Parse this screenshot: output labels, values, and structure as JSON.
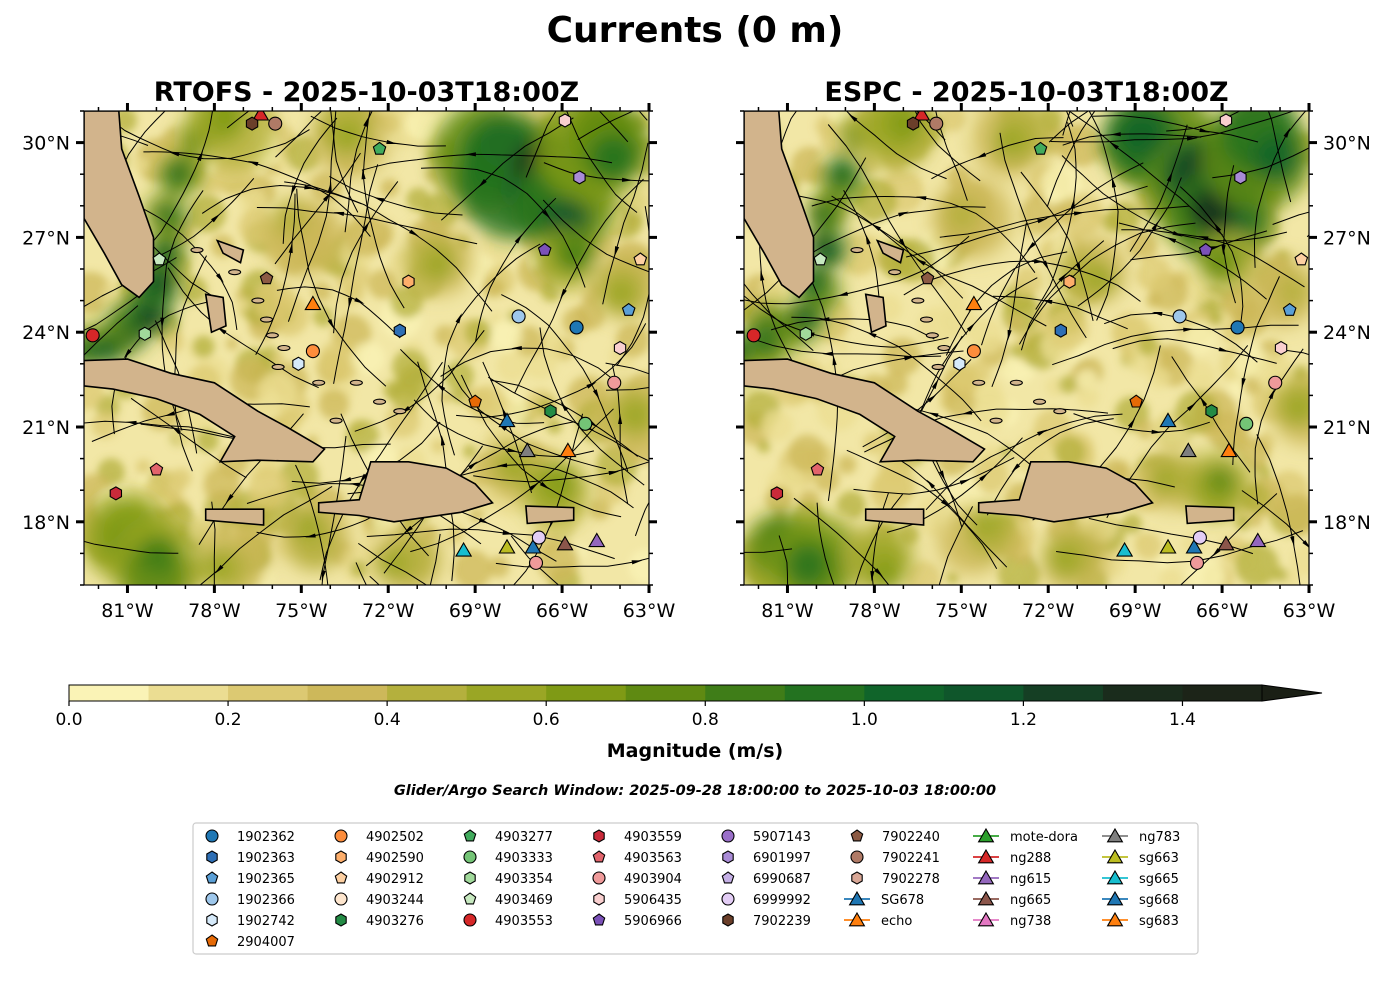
{
  "chart_data": {
    "type": "heatmap",
    "title": "Currents (0 m)",
    "panels": [
      {
        "title": "RTOFS - 2025-10-03T18:00Z",
        "variable": "surface current magnitude with streamlines"
      },
      {
        "title": "ESPC - 2025-10-03T18:00Z",
        "variable": "surface current magnitude with streamlines"
      }
    ],
    "xlim": [
      -82.5,
      -63.0
    ],
    "ylim": [
      16.0,
      31.0
    ],
    "x_ticks": [
      "81°W",
      "78°W",
      "75°W",
      "72°W",
      "69°W",
      "66°W",
      "63°W"
    ],
    "y_ticks": [
      "18°N",
      "21°N",
      "24°N",
      "27°N",
      "30°N"
    ],
    "colorbar": {
      "label": "Magnitude (m/s)",
      "range": [
        0.0,
        1.5
      ],
      "extend": "max",
      "ticks": [
        "0.0",
        "0.2",
        "0.4",
        "0.6",
        "0.8",
        "1.0",
        "1.2",
        "1.4"
      ],
      "colors": [
        "#faf3b6",
        "#ebdd92",
        "#dcc972",
        "#cdb85a",
        "#b4b03d",
        "#9aa625",
        "#7f9a15",
        "#5f8a12",
        "#3f7d18",
        "#237220",
        "#10642a",
        "#0f562b",
        "#153f24",
        "#1a2c1c",
        "#1c2418"
      ]
    },
    "subtitle": "Glider/Argo Search Window: 2025-09-28 18:00:00 to 2025-10-03 18:00:00",
    "legend": [
      {
        "name": "1902362",
        "marker": "circle",
        "color": "#1f77b4"
      },
      {
        "name": "1902363",
        "marker": "hexagon",
        "color": "#2e6fb5"
      },
      {
        "name": "1902365",
        "marker": "pentagon",
        "color": "#5a9fd6"
      },
      {
        "name": "1902366",
        "marker": "circle",
        "color": "#9ec7eb"
      },
      {
        "name": "1902742",
        "marker": "hexagon",
        "color": "#d6eafa"
      },
      {
        "name": "2904007",
        "marker": "pentagon",
        "color": "#e66a06"
      },
      {
        "name": "4902502",
        "marker": "circle",
        "color": "#fd8d3c"
      },
      {
        "name": "4902590",
        "marker": "hexagon",
        "color": "#fdae6b"
      },
      {
        "name": "4902912",
        "marker": "pentagon",
        "color": "#fdd0a2"
      },
      {
        "name": "4903244",
        "marker": "circle",
        "color": "#fee6ce"
      },
      {
        "name": "4903276",
        "marker": "hexagon",
        "color": "#238b45"
      },
      {
        "name": "4903277",
        "marker": "pentagon",
        "color": "#41ab5d"
      },
      {
        "name": "4903333",
        "marker": "circle",
        "color": "#74c476"
      },
      {
        "name": "4903354",
        "marker": "hexagon",
        "color": "#a1d99b"
      },
      {
        "name": "4903469",
        "marker": "pentagon",
        "color": "#c7e9c0"
      },
      {
        "name": "4903553",
        "marker": "circle",
        "color": "#d62728"
      },
      {
        "name": "4903559",
        "marker": "hexagon",
        "color": "#c92a3a"
      },
      {
        "name": "4903563",
        "marker": "pentagon",
        "color": "#e2646c"
      },
      {
        "name": "4903904",
        "marker": "circle",
        "color": "#ef9a9a"
      },
      {
        "name": "5906435",
        "marker": "hexagon",
        "color": "#f9cfcf"
      },
      {
        "name": "5906966",
        "marker": "pentagon",
        "color": "#7b51b8"
      },
      {
        "name": "5907143",
        "marker": "circle",
        "color": "#9a6fc9"
      },
      {
        "name": "6901997",
        "marker": "hexagon",
        "color": "#a98bd6"
      },
      {
        "name": "6990687",
        "marker": "pentagon",
        "color": "#c5b0e6"
      },
      {
        "name": "6999992",
        "marker": "circle",
        "color": "#e3cdf5"
      },
      {
        "name": "7902239",
        "marker": "hexagon",
        "color": "#6b3f2a"
      },
      {
        "name": "7902240",
        "marker": "pentagon",
        "color": "#8c5a44"
      },
      {
        "name": "7902241",
        "marker": "circle",
        "color": "#b07a66"
      },
      {
        "name": "7902278",
        "marker": "hexagon",
        "color": "#d9a796"
      },
      {
        "name": "SG678",
        "marker": "triangle",
        "color": "#1f77b4"
      },
      {
        "name": "echo",
        "marker": "triangle",
        "color": "#ff7f0e"
      },
      {
        "name": "mote-dora",
        "marker": "triangle",
        "color": "#2ca02c"
      },
      {
        "name": "ng288",
        "marker": "triangle",
        "color": "#d62728"
      },
      {
        "name": "ng615",
        "marker": "triangle",
        "color": "#9467bd"
      },
      {
        "name": "ng665",
        "marker": "triangle",
        "color": "#8c564b"
      },
      {
        "name": "ng738",
        "marker": "triangle",
        "color": "#e377c2"
      },
      {
        "name": "ng783",
        "marker": "triangle",
        "color": "#7f7f7f"
      },
      {
        "name": "sg663",
        "marker": "triangle",
        "color": "#bcbd22"
      },
      {
        "name": "sg665",
        "marker": "triangle",
        "color": "#17becf"
      },
      {
        "name": "sg668",
        "marker": "triangle",
        "color": "#1f77b4"
      },
      {
        "name": "sg683",
        "marker": "triangle",
        "color": "#ff7f0e"
      }
    ],
    "markers_on_map": [
      {
        "name": "4903553",
        "lon": -82.2,
        "lat": 23.9
      },
      {
        "name": "4903354",
        "lon": -80.4,
        "lat": 23.95
      },
      {
        "name": "4903469",
        "lon": -79.9,
        "lat": 26.3
      },
      {
        "name": "7902240",
        "lon": -76.2,
        "lat": 25.7
      },
      {
        "name": "ng288",
        "lon": -76.4,
        "lat": 30.9
      },
      {
        "name": "7902239",
        "lon": -76.7,
        "lat": 30.6
      },
      {
        "name": "7902241",
        "lon": -75.9,
        "lat": 30.6
      },
      {
        "name": "4903277",
        "lon": -72.3,
        "lat": 29.8
      },
      {
        "name": "echo",
        "lon": -74.6,
        "lat": 24.9
      },
      {
        "name": "4902502",
        "lon": -74.6,
        "lat": 23.4
      },
      {
        "name": "1902742",
        "lon": -75.1,
        "lat": 23.0
      },
      {
        "name": "1902363",
        "lon": -71.6,
        "lat": 24.05
      },
      {
        "name": "4902590",
        "lon": -71.3,
        "lat": 25.6
      },
      {
        "name": "1902366",
        "lon": -67.5,
        "lat": 24.5
      },
      {
        "name": "1902362",
        "lon": -65.5,
        "lat": 24.15
      },
      {
        "name": "1902365",
        "lon": -63.7,
        "lat": 24.7
      },
      {
        "name": "4902912",
        "lon": -63.3,
        "lat": 26.3
      },
      {
        "name": "5906966",
        "lon": -66.6,
        "lat": 26.6
      },
      {
        "name": "6901997",
        "lon": -65.4,
        "lat": 28.9
      },
      {
        "name": "5906435",
        "lon": -65.9,
        "lat": 30.7
      },
      {
        "name": "5906435",
        "lon": -64.0,
        "lat": 23.5
      },
      {
        "name": "4903904",
        "lon": -64.2,
        "lat": 22.4
      },
      {
        "name": "2904007",
        "lon": -69.0,
        "lat": 21.8
      },
      {
        "name": "4903276",
        "lon": -66.4,
        "lat": 21.5
      },
      {
        "name": "4903333",
        "lon": -65.2,
        "lat": 21.1
      },
      {
        "name": "SG678",
        "lon": -67.9,
        "lat": 21.2
      },
      {
        "name": "ng783",
        "lon": -67.2,
        "lat": 20.25
      },
      {
        "name": "sg683",
        "lon": -65.8,
        "lat": 20.25
      },
      {
        "name": "4903563",
        "lon": -80.0,
        "lat": 19.65
      },
      {
        "name": "4903559",
        "lon": -81.4,
        "lat": 18.9
      },
      {
        "name": "sg665",
        "lon": -69.4,
        "lat": 17.1
      },
      {
        "name": "sg663",
        "lon": -67.9,
        "lat": 17.2
      },
      {
        "name": "sg668",
        "lon": -67.0,
        "lat": 17.2
      },
      {
        "name": "6999992",
        "lon": -66.8,
        "lat": 17.5
      },
      {
        "name": "4903904",
        "lon": -66.9,
        "lat": 16.7
      },
      {
        "name": "ng665",
        "lon": -65.9,
        "lat": 17.3
      },
      {
        "name": "ng615",
        "lon": -64.8,
        "lat": 17.4
      }
    ]
  }
}
